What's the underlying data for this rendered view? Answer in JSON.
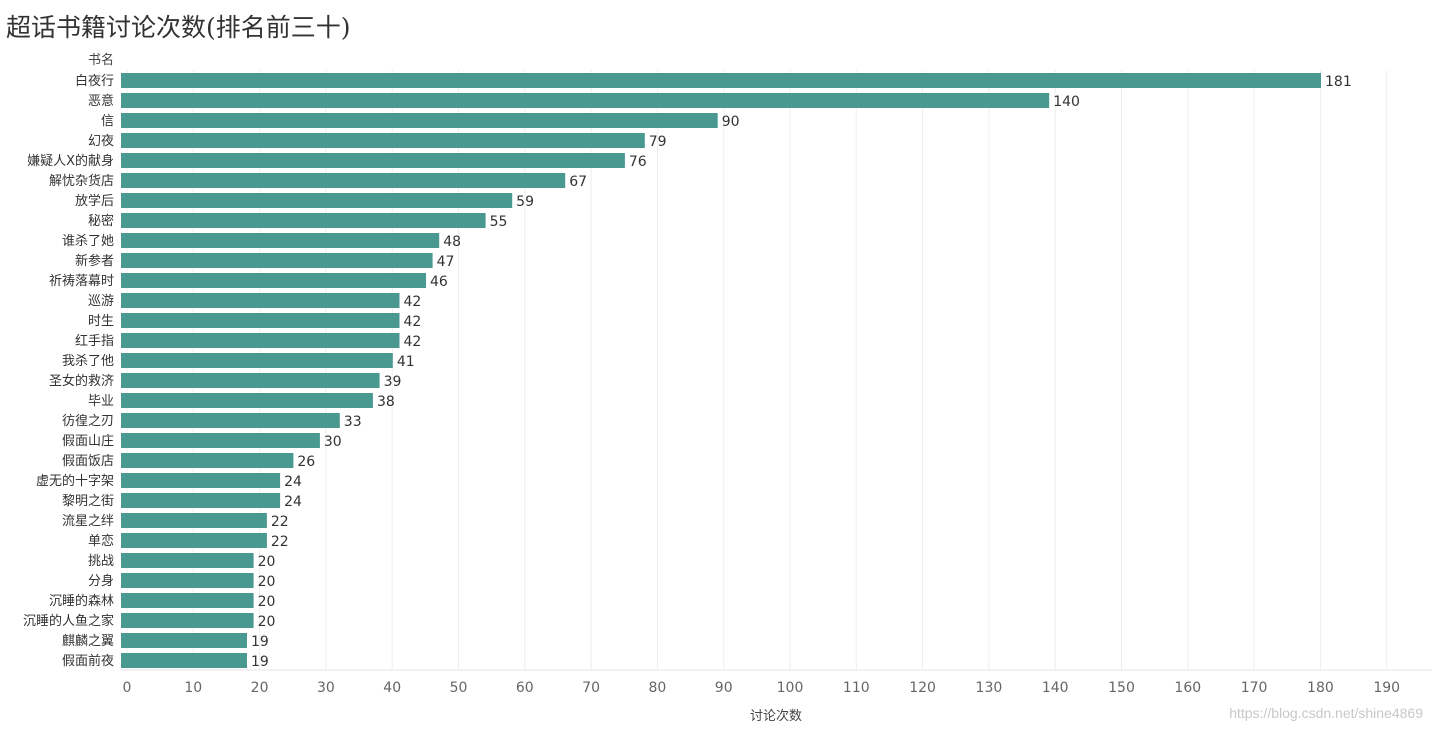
{
  "chart_data": {
    "type": "bar",
    "orientation": "horizontal",
    "title": "超话书籍讨论次数(排名前三十)",
    "category_axis_title": "书名",
    "xlabel": "讨论次数",
    "xlim": [
      0,
      195
    ],
    "xticks": [
      0,
      10,
      20,
      30,
      40,
      50,
      60,
      70,
      80,
      90,
      100,
      110,
      120,
      130,
      140,
      150,
      160,
      170,
      180,
      190
    ],
    "grid": "vertical",
    "bar_color": "#4a9991",
    "categories": [
      "白夜行",
      "恶意",
      "信",
      "幻夜",
      "嫌疑人X的献身",
      "解忧杂货店",
      "放学后",
      "秘密",
      "谁杀了她",
      "新参者",
      "祈祷落幕时",
      "巡游",
      "时生",
      "红手指",
      "我杀了他",
      "圣女的救济",
      "毕业",
      "彷徨之刃",
      "假面山庄",
      "假面饭店",
      "虚无的十字架",
      "黎明之街",
      "流星之绊",
      "单恋",
      "挑战",
      "分身",
      "沉睡的森林",
      "沉睡的人鱼之家",
      "麒麟之翼",
      "假面前夜"
    ],
    "values": [
      181,
      140,
      90,
      79,
      76,
      67,
      59,
      55,
      48,
      47,
      46,
      42,
      42,
      42,
      41,
      39,
      38,
      33,
      30,
      26,
      24,
      24,
      22,
      22,
      20,
      20,
      20,
      20,
      19,
      19
    ]
  },
  "watermark": "https://blog.csdn.net/shine4869"
}
